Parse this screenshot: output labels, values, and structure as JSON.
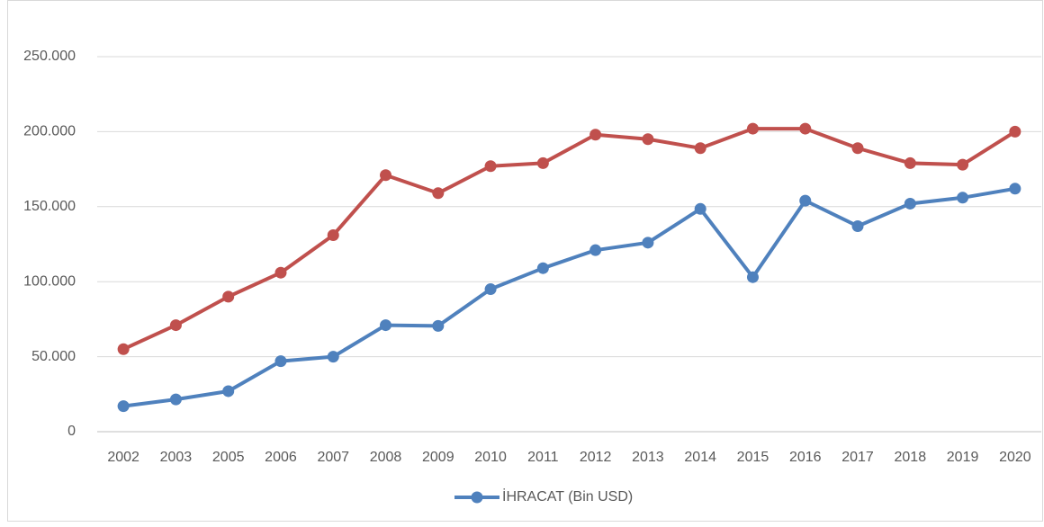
{
  "chart_data": {
    "type": "line",
    "categories": [
      "2002",
      "2003",
      "2005",
      "2006",
      "2007",
      "2008",
      "2009",
      "2010",
      "2011",
      "2012",
      "2013",
      "2014",
      "2015",
      "2016",
      "2017",
      "2018",
      "2019",
      "2020"
    ],
    "series": [
      {
        "name": "İHRACAT (Bin USD)",
        "color": "#4f81bd",
        "values": [
          17000,
          21500,
          27000,
          47000,
          50000,
          71000,
          70500,
          95000,
          109000,
          121000,
          126000,
          148500,
          103000,
          154000,
          137000,
          152000,
          156000,
          162000
        ]
      },
      {
        "color": "#c0504d",
        "values": [
          55000,
          71000,
          90000,
          106000,
          131000,
          171000,
          159000,
          177000,
          179000,
          198000,
          195000,
          189000,
          202000,
          202000,
          189000,
          179000,
          178000,
          200000
        ]
      }
    ],
    "ylim": [
      0,
      250000
    ],
    "yticks": [
      0,
      {
        "value": 50000,
        "label": "50.000"
      },
      {
        "value": 100000,
        "label": "100.000"
      },
      {
        "value": 150000,
        "label": "150.000"
      },
      {
        "value": 200000,
        "label": "200.000"
      },
      {
        "value": 250000,
        "label": "250.000"
      }
    ],
    "grid": true,
    "legend": "bottom"
  }
}
